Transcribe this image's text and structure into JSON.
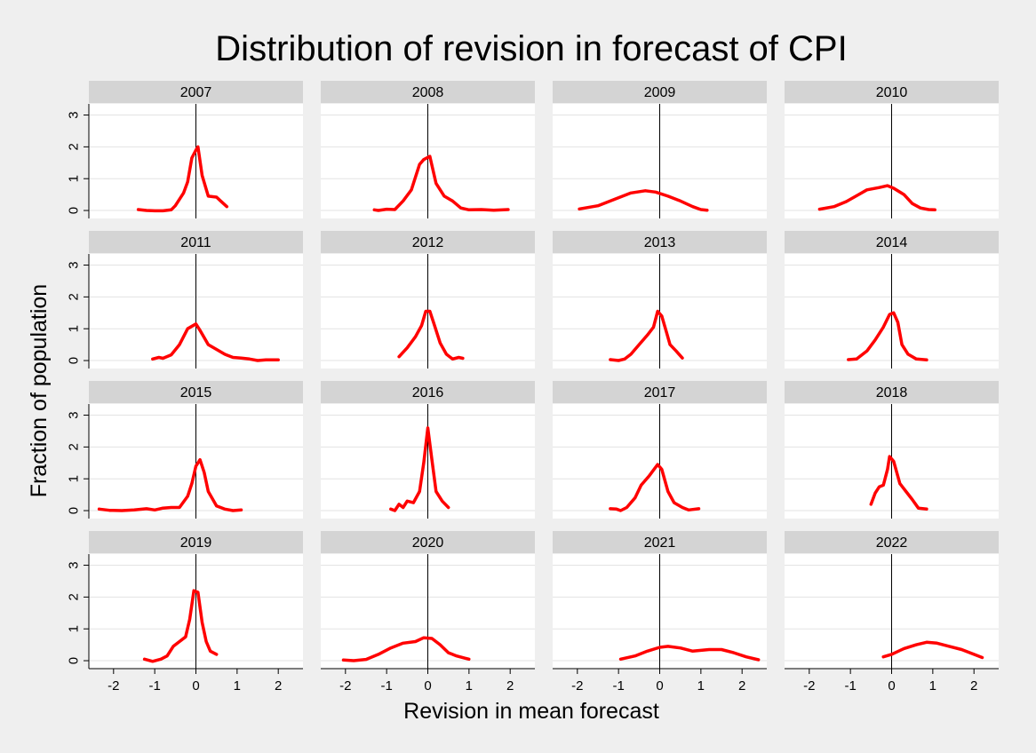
{
  "chart_data": {
    "type": "line",
    "title": "Distribution of revision in forecast of CPI",
    "xlabel": "Revision in mean forecast",
    "ylabel": "Fraction of population",
    "xlim": [
      -2.6,
      2.6
    ],
    "ylim": [
      -0.25,
      3.35
    ],
    "x_ticks": [
      "-2",
      "-1",
      "0",
      "1",
      "2"
    ],
    "y_ticks": [
      "0",
      "1",
      "2",
      "3"
    ],
    "grid": true,
    "vertical_reference_line": 0,
    "line_color": "#ff0000",
    "panels": [
      {
        "label": "2007",
        "points": [
          [
            -1.4,
            0.03
          ],
          [
            -1.2,
            0.0
          ],
          [
            -1.0,
            -0.01
          ],
          [
            -0.8,
            -0.01
          ],
          [
            -0.6,
            0.02
          ],
          [
            -0.5,
            0.15
          ],
          [
            -0.3,
            0.55
          ],
          [
            -0.2,
            0.9
          ],
          [
            -0.1,
            1.65
          ],
          [
            0.0,
            1.9
          ],
          [
            0.05,
            2.0
          ],
          [
            0.15,
            1.1
          ],
          [
            0.3,
            0.45
          ],
          [
            0.5,
            0.42
          ],
          [
            0.6,
            0.3
          ],
          [
            0.75,
            0.12
          ]
        ]
      },
      {
        "label": "2008",
        "points": [
          [
            -1.3,
            0.02
          ],
          [
            -1.2,
            0.0
          ],
          [
            -1.0,
            0.04
          ],
          [
            -0.8,
            0.03
          ],
          [
            -0.6,
            0.3
          ],
          [
            -0.4,
            0.65
          ],
          [
            -0.2,
            1.45
          ],
          [
            -0.1,
            1.6
          ],
          [
            0.05,
            1.7
          ],
          [
            0.2,
            0.85
          ],
          [
            0.4,
            0.45
          ],
          [
            0.6,
            0.3
          ],
          [
            0.8,
            0.08
          ],
          [
            1.0,
            0.02
          ],
          [
            1.3,
            0.03
          ],
          [
            1.6,
            0.01
          ],
          [
            1.95,
            0.03
          ]
        ]
      },
      {
        "label": "2009",
        "points": [
          [
            -1.95,
            0.05
          ],
          [
            -1.5,
            0.15
          ],
          [
            -1.1,
            0.35
          ],
          [
            -0.7,
            0.55
          ],
          [
            -0.35,
            0.62
          ],
          [
            -0.1,
            0.58
          ],
          [
            0.2,
            0.45
          ],
          [
            0.5,
            0.3
          ],
          [
            0.8,
            0.12
          ],
          [
            1.0,
            0.03
          ],
          [
            1.15,
            0.01
          ]
        ]
      },
      {
        "label": "2010",
        "points": [
          [
            -1.75,
            0.04
          ],
          [
            -1.4,
            0.12
          ],
          [
            -1.1,
            0.28
          ],
          [
            -0.8,
            0.5
          ],
          [
            -0.6,
            0.65
          ],
          [
            -0.3,
            0.72
          ],
          [
            -0.1,
            0.78
          ],
          [
            0.05,
            0.7
          ],
          [
            0.3,
            0.5
          ],
          [
            0.5,
            0.22
          ],
          [
            0.7,
            0.08
          ],
          [
            0.9,
            0.03
          ],
          [
            1.05,
            0.02
          ]
        ]
      },
      {
        "label": "2011",
        "points": [
          [
            -1.05,
            0.05
          ],
          [
            -0.9,
            0.1
          ],
          [
            -0.8,
            0.07
          ],
          [
            -0.6,
            0.18
          ],
          [
            -0.4,
            0.5
          ],
          [
            -0.2,
            1.0
          ],
          [
            0.0,
            1.15
          ],
          [
            0.1,
            0.95
          ],
          [
            0.3,
            0.5
          ],
          [
            0.5,
            0.35
          ],
          [
            0.7,
            0.2
          ],
          [
            0.9,
            0.1
          ],
          [
            1.1,
            0.08
          ],
          [
            1.3,
            0.05
          ],
          [
            1.5,
            0.0
          ],
          [
            1.7,
            0.02
          ],
          [
            2.0,
            0.02
          ]
        ]
      },
      {
        "label": "2012",
        "points": [
          [
            -0.7,
            0.12
          ],
          [
            -0.5,
            0.4
          ],
          [
            -0.3,
            0.75
          ],
          [
            -0.15,
            1.1
          ],
          [
            -0.05,
            1.55
          ],
          [
            0.05,
            1.55
          ],
          [
            0.15,
            1.15
          ],
          [
            0.3,
            0.55
          ],
          [
            0.45,
            0.2
          ],
          [
            0.6,
            0.05
          ],
          [
            0.75,
            0.1
          ],
          [
            0.85,
            0.07
          ]
        ]
      },
      {
        "label": "2013",
        "points": [
          [
            -1.2,
            0.03
          ],
          [
            -1.0,
            0.0
          ],
          [
            -0.85,
            0.05
          ],
          [
            -0.7,
            0.2
          ],
          [
            -0.5,
            0.5
          ],
          [
            -0.3,
            0.8
          ],
          [
            -0.15,
            1.05
          ],
          [
            -0.05,
            1.55
          ],
          [
            0.05,
            1.4
          ],
          [
            0.15,
            0.95
          ],
          [
            0.25,
            0.5
          ],
          [
            0.4,
            0.3
          ],
          [
            0.55,
            0.08
          ]
        ]
      },
      {
        "label": "2014",
        "points": [
          [
            -1.05,
            0.03
          ],
          [
            -0.85,
            0.05
          ],
          [
            -0.6,
            0.3
          ],
          [
            -0.4,
            0.65
          ],
          [
            -0.2,
            1.05
          ],
          [
            -0.05,
            1.45
          ],
          [
            0.05,
            1.5
          ],
          [
            0.15,
            1.2
          ],
          [
            0.25,
            0.5
          ],
          [
            0.4,
            0.2
          ],
          [
            0.6,
            0.05
          ],
          [
            0.85,
            0.02
          ]
        ]
      },
      {
        "label": "2015",
        "points": [
          [
            -2.35,
            0.05
          ],
          [
            -2.1,
            0.01
          ],
          [
            -1.8,
            0.0
          ],
          [
            -1.5,
            0.02
          ],
          [
            -1.2,
            0.06
          ],
          [
            -1.0,
            0.02
          ],
          [
            -0.8,
            0.08
          ],
          [
            -0.6,
            0.1
          ],
          [
            -0.4,
            0.1
          ],
          [
            -0.2,
            0.45
          ],
          [
            -0.1,
            0.85
          ],
          [
            0.0,
            1.4
          ],
          [
            0.1,
            1.6
          ],
          [
            0.2,
            1.2
          ],
          [
            0.3,
            0.6
          ],
          [
            0.5,
            0.15
          ],
          [
            0.7,
            0.05
          ],
          [
            0.9,
            0.0
          ],
          [
            1.1,
            0.02
          ]
        ]
      },
      {
        "label": "2016",
        "points": [
          [
            -0.9,
            0.05
          ],
          [
            -0.8,
            0.0
          ],
          [
            -0.7,
            0.2
          ],
          [
            -0.6,
            0.1
          ],
          [
            -0.5,
            0.3
          ],
          [
            -0.35,
            0.25
          ],
          [
            -0.2,
            0.6
          ],
          [
            -0.1,
            1.5
          ],
          [
            0.0,
            2.6
          ],
          [
            0.1,
            1.6
          ],
          [
            0.2,
            0.6
          ],
          [
            0.35,
            0.3
          ],
          [
            0.5,
            0.1
          ]
        ]
      },
      {
        "label": "2017",
        "points": [
          [
            -1.2,
            0.06
          ],
          [
            -1.05,
            0.05
          ],
          [
            -0.95,
            0.0
          ],
          [
            -0.8,
            0.1
          ],
          [
            -0.6,
            0.4
          ],
          [
            -0.45,
            0.8
          ],
          [
            -0.25,
            1.1
          ],
          [
            -0.05,
            1.45
          ],
          [
            0.05,
            1.3
          ],
          [
            0.2,
            0.6
          ],
          [
            0.35,
            0.25
          ],
          [
            0.55,
            0.1
          ],
          [
            0.7,
            0.02
          ],
          [
            0.95,
            0.06
          ]
        ]
      },
      {
        "label": "2018",
        "points": [
          [
            -0.5,
            0.2
          ],
          [
            -0.4,
            0.55
          ],
          [
            -0.3,
            0.75
          ],
          [
            -0.2,
            0.8
          ],
          [
            -0.1,
            1.3
          ],
          [
            -0.05,
            1.7
          ],
          [
            0.05,
            1.55
          ],
          [
            0.2,
            0.85
          ],
          [
            0.35,
            0.6
          ],
          [
            0.5,
            0.35
          ],
          [
            0.65,
            0.08
          ],
          [
            0.85,
            0.05
          ]
        ]
      },
      {
        "label": "2019",
        "points": [
          [
            -1.25,
            0.05
          ],
          [
            -1.05,
            -0.02
          ],
          [
            -0.85,
            0.05
          ],
          [
            -0.7,
            0.15
          ],
          [
            -0.55,
            0.45
          ],
          [
            -0.4,
            0.6
          ],
          [
            -0.25,
            0.75
          ],
          [
            -0.15,
            1.3
          ],
          [
            -0.05,
            2.2
          ],
          [
            0.05,
            2.15
          ],
          [
            0.15,
            1.2
          ],
          [
            0.25,
            0.6
          ],
          [
            0.35,
            0.3
          ],
          [
            0.5,
            0.2
          ]
        ]
      },
      {
        "label": "2020",
        "points": [
          [
            -2.05,
            0.02
          ],
          [
            -1.8,
            0.0
          ],
          [
            -1.5,
            0.04
          ],
          [
            -1.2,
            0.2
          ],
          [
            -0.9,
            0.4
          ],
          [
            -0.6,
            0.55
          ],
          [
            -0.3,
            0.6
          ],
          [
            -0.1,
            0.72
          ],
          [
            0.1,
            0.7
          ],
          [
            0.3,
            0.5
          ],
          [
            0.5,
            0.25
          ],
          [
            0.7,
            0.15
          ],
          [
            0.9,
            0.08
          ],
          [
            1.0,
            0.05
          ]
        ]
      },
      {
        "label": "2021",
        "points": [
          [
            -0.95,
            0.05
          ],
          [
            -0.6,
            0.15
          ],
          [
            -0.3,
            0.3
          ],
          [
            0.0,
            0.42
          ],
          [
            0.2,
            0.45
          ],
          [
            0.5,
            0.4
          ],
          [
            0.8,
            0.3
          ],
          [
            1.2,
            0.35
          ],
          [
            1.5,
            0.35
          ],
          [
            1.8,
            0.25
          ],
          [
            2.1,
            0.12
          ],
          [
            2.4,
            0.03
          ]
        ]
      },
      {
        "label": "2022",
        "points": [
          [
            -0.2,
            0.12
          ],
          [
            0.0,
            0.2
          ],
          [
            0.3,
            0.38
          ],
          [
            0.6,
            0.5
          ],
          [
            0.85,
            0.58
          ],
          [
            1.1,
            0.55
          ],
          [
            1.4,
            0.45
          ],
          [
            1.7,
            0.35
          ],
          [
            2.0,
            0.2
          ],
          [
            2.2,
            0.1
          ]
        ]
      }
    ]
  }
}
